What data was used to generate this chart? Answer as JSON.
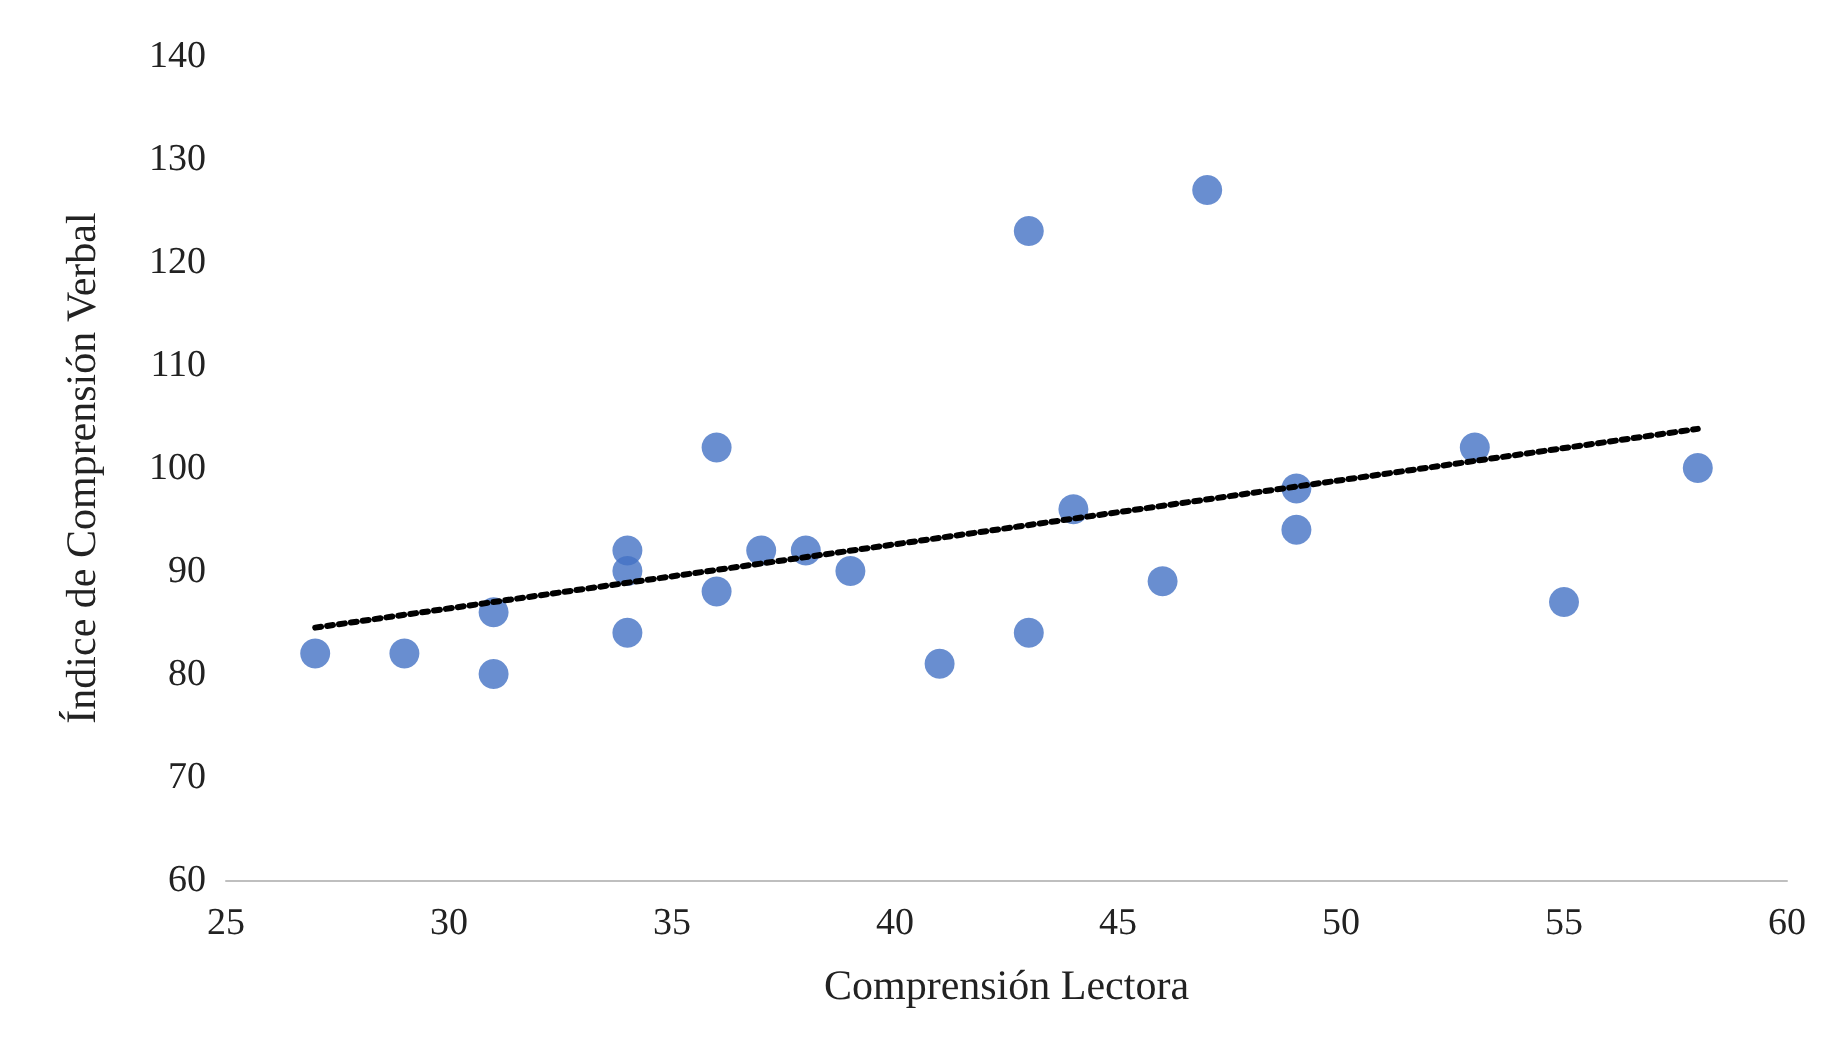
{
  "chart_data": {
    "type": "scatter",
    "xlabel": "Comprensión Lectora",
    "ylabel": "Índice de Comprensión Verbal",
    "xlim": [
      25,
      60
    ],
    "xticks": [
      25,
      30,
      35,
      40,
      45,
      50,
      55,
      60
    ],
    "ylim": [
      60,
      140
    ],
    "yticks": [
      60,
      70,
      80,
      90,
      100,
      110,
      120,
      130,
      140
    ],
    "grid": false,
    "marker": "circle",
    "series": [
      {
        "color": "#4472c4",
        "x": [
          27,
          29,
          31,
          31,
          34,
          34,
          34,
          36,
          36,
          37,
          38,
          39,
          41,
          43,
          43,
          44,
          46,
          47,
          49,
          49,
          53,
          55,
          58
        ],
        "values": [
          82,
          82,
          86,
          80,
          92,
          90,
          84,
          102,
          88,
          92,
          92,
          90,
          81,
          123,
          84,
          96,
          89,
          127,
          98,
          94,
          102,
          87,
          100
        ]
      },
      {
        "type": "line",
        "color": "#000000",
        "line_style": "dotted",
        "marker": "none",
        "x": [
          27,
          58
        ],
        "values": [
          84.5,
          103.8
        ]
      }
    ]
  }
}
